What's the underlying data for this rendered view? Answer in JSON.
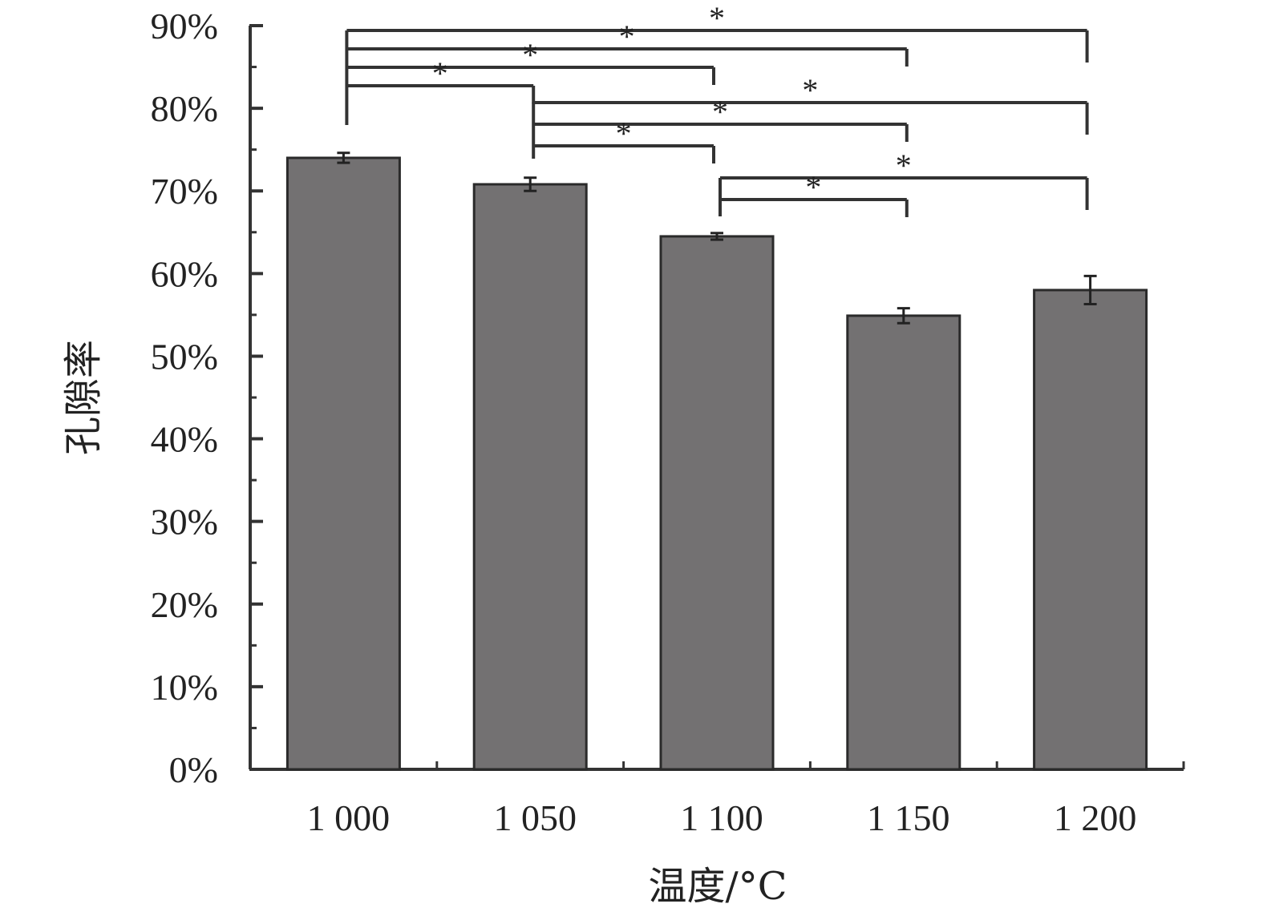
{
  "chart_data": {
    "type": "bar",
    "categories": [
      "1 000",
      "1 050",
      "1 100",
      "1 150",
      "1 200"
    ],
    "values": [
      74.0,
      70.8,
      64.5,
      54.9,
      58.0
    ],
    "errors": [
      0.6,
      0.8,
      0.4,
      0.9,
      1.7
    ],
    "xlabel": "温度/°C",
    "ylabel": "孔隙率",
    "ylim": [
      0,
      90
    ],
    "yticks": [
      0,
      10,
      20,
      30,
      40,
      50,
      60,
      70,
      80,
      90
    ],
    "ytick_suffix": "%",
    "grid": false,
    "bar_color": "#737172",
    "significance": [
      {
        "from": "1 000",
        "to": "1 200",
        "label": "*"
      },
      {
        "from": "1 000",
        "to": "1 150",
        "label": "*"
      },
      {
        "from": "1 000",
        "to": "1 100",
        "label": "*"
      },
      {
        "from": "1 000",
        "to": "1 050",
        "label": "*"
      },
      {
        "from": "1 050",
        "to": "1 200",
        "label": "*"
      },
      {
        "from": "1 050",
        "to": "1 150",
        "label": "*"
      },
      {
        "from": "1 050",
        "to": "1 100",
        "label": "*"
      },
      {
        "from": "1 100",
        "to": "1 200",
        "label": "*"
      },
      {
        "from": "1 100",
        "to": "1 150",
        "label": "*"
      }
    ]
  }
}
